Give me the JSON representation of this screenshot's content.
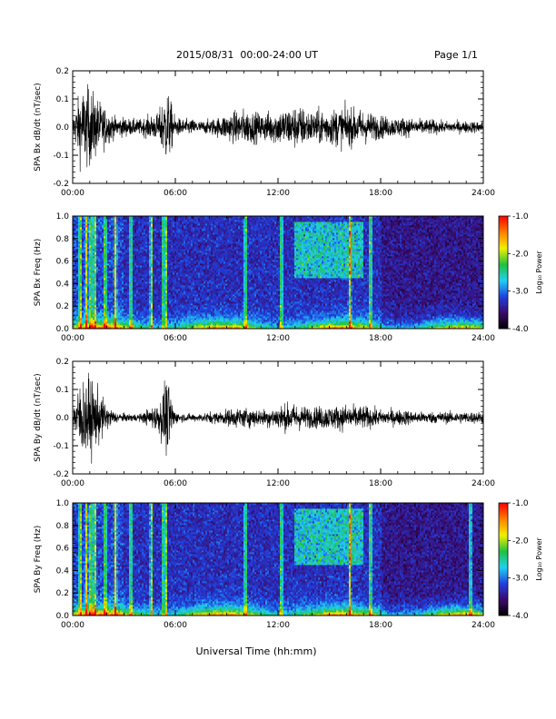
{
  "header": {
    "title": "2015/08/31  00:00-24:00 UT",
    "page": "Page 1/1"
  },
  "xlabel": "Universal Time (hh:mm)",
  "colorbar": {
    "label": "Log₁₀ Power",
    "ticks": [
      "-1.0",
      "-2.0",
      "-3.0",
      "-4.0"
    ],
    "range": [
      -4.0,
      -1.0
    ],
    "colormap": [
      "#000000",
      "#3a0a6a",
      "#2040e0",
      "#20d0f0",
      "#20c040",
      "#f0f000",
      "#ff8000",
      "#ff0000"
    ]
  },
  "chart_data": [
    {
      "type": "line",
      "title": "",
      "ylabel": "SPA Bx dB/dt (nT/sec)",
      "xlabel": "",
      "xlim": [
        "00:00",
        "24:00"
      ],
      "ylim": [
        -0.2,
        0.2
      ],
      "x_ticks": [
        "00:00",
        "06:00",
        "12:00",
        "18:00",
        "24:00"
      ],
      "y_ticks": [
        "-0.2",
        "-0.1",
        "0.0",
        "0.1",
        "0.2"
      ],
      "series": [
        {
          "hours": [
            0,
            0.5,
            1,
            1.5,
            2,
            2.5,
            3,
            3.5,
            4,
            4.5,
            5,
            5.5,
            6,
            6.5,
            7,
            7.5,
            8,
            8.5,
            9,
            9.5,
            10,
            10.5,
            11,
            11.5,
            12,
            12.5,
            13,
            13.5,
            14,
            14.5,
            15,
            15.5,
            16,
            16.5,
            17,
            17.5,
            18,
            18.5,
            19,
            19.5,
            20,
            20.5,
            21,
            21.5,
            22,
            22.5,
            23,
            23.5,
            24
          ],
          "amplitude": [
            0.05,
            0.2,
            0.2,
            0.14,
            0.09,
            0.05,
            0.05,
            0.04,
            0.04,
            0.06,
            0.07,
            0.2,
            0.05,
            0.04,
            0.04,
            0.03,
            0.04,
            0.05,
            0.07,
            0.08,
            0.09,
            0.08,
            0.07,
            0.08,
            0.09,
            0.1,
            0.11,
            0.1,
            0.08,
            0.09,
            0.09,
            0.1,
            0.1,
            0.09,
            0.09,
            0.07,
            0.06,
            0.05,
            0.05,
            0.05,
            0.04,
            0.04,
            0.04,
            0.03,
            0.03,
            0.03,
            0.03,
            0.03,
            0.03
          ]
        }
      ]
    },
    {
      "type": "heatmap",
      "title": "",
      "ylabel": "SPA Bx Freq (Hz)",
      "xlabel": "",
      "xlim": [
        "00:00",
        "24:00"
      ],
      "ylim": [
        0.0,
        1.0
      ],
      "x_ticks": [
        "00:00",
        "06:00",
        "12:00",
        "18:00",
        "24:00"
      ],
      "y_ticks": [
        "0.0",
        "0.2",
        "0.4",
        "0.6",
        "0.8",
        "1.0"
      ],
      "value_range": [
        -4.0,
        -1.0
      ],
      "note_levels": "log10 power"
    },
    {
      "type": "line",
      "title": "",
      "ylabel": "SPA By dB/dt (nT/sec)",
      "xlabel": "",
      "xlim": [
        "00:00",
        "24:00"
      ],
      "ylim": [
        -0.2,
        0.2
      ],
      "x_ticks": [
        "00:00",
        "06:00",
        "12:00",
        "18:00",
        "24:00"
      ],
      "y_ticks": [
        "-0.2",
        "-0.1",
        "0.0",
        "0.1",
        "0.2"
      ],
      "series": [
        {
          "hours": [
            0,
            0.5,
            1,
            1.5,
            2,
            2.5,
            3,
            3.5,
            4,
            4.5,
            5,
            5.5,
            6,
            6.5,
            7,
            7.5,
            8,
            8.5,
            9,
            9.5,
            10,
            10.5,
            11,
            11.5,
            12,
            12.5,
            13,
            13.5,
            14,
            14.5,
            15,
            15.5,
            16,
            16.5,
            17,
            17.5,
            18,
            18.5,
            19,
            19.5,
            20,
            20.5,
            21,
            21.5,
            22,
            22.5,
            23,
            23.5,
            24
          ],
          "amplitude": [
            0.05,
            0.2,
            0.2,
            0.14,
            0.06,
            0.03,
            0.02,
            0.02,
            0.02,
            0.05,
            0.07,
            0.2,
            0.03,
            0.02,
            0.02,
            0.02,
            0.03,
            0.03,
            0.04,
            0.05,
            0.05,
            0.05,
            0.04,
            0.05,
            0.06,
            0.07,
            0.07,
            0.06,
            0.05,
            0.06,
            0.06,
            0.06,
            0.07,
            0.06,
            0.06,
            0.05,
            0.04,
            0.04,
            0.04,
            0.04,
            0.03,
            0.03,
            0.03,
            0.03,
            0.03,
            0.03,
            0.03,
            0.03,
            0.03
          ]
        }
      ]
    },
    {
      "type": "heatmap",
      "title": "",
      "ylabel": "SPA By Freq (Hz)",
      "xlabel": "",
      "xlim": [
        "00:00",
        "24:00"
      ],
      "ylim": [
        0.0,
        1.0
      ],
      "x_ticks": [
        "00:00",
        "06:00",
        "12:00",
        "18:00",
        "24:00"
      ],
      "y_ticks": [
        "0.0",
        "0.2",
        "0.4",
        "0.6",
        "0.8",
        "1.0"
      ],
      "value_range": [
        -4.0,
        -1.0
      ],
      "note_levels": "log10 power"
    }
  ]
}
